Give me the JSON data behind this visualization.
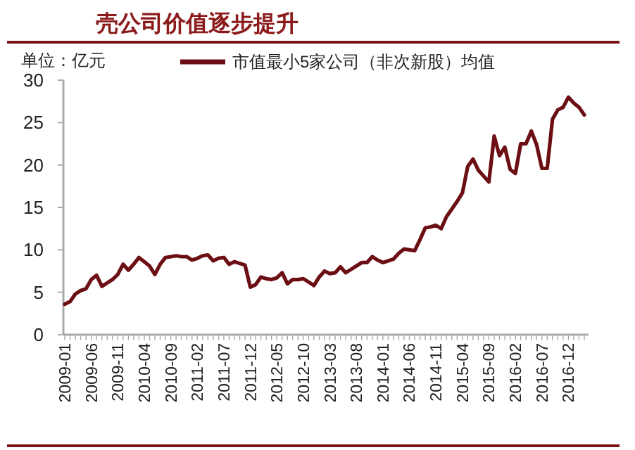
{
  "chart_data": {
    "type": "line",
    "title": "壳公司价值逐步提升",
    "ylabel": "单位：亿元",
    "categories": [
      "2009-01",
      null,
      null,
      null,
      null,
      "2009-06",
      null,
      null,
      null,
      null,
      "2009-11",
      null,
      null,
      null,
      null,
      "2010-04",
      null,
      null,
      null,
      null,
      "2010-09",
      null,
      null,
      null,
      null,
      "2011-02",
      null,
      null,
      null,
      null,
      "2011-07",
      null,
      null,
      null,
      null,
      "2011-12",
      null,
      null,
      null,
      null,
      "2012-05",
      null,
      null,
      null,
      null,
      "2012-10",
      null,
      null,
      null,
      null,
      "2013-03",
      null,
      null,
      null,
      null,
      "2013-08",
      null,
      null,
      null,
      null,
      "2014-01",
      null,
      null,
      null,
      null,
      "2014-06",
      null,
      null,
      null,
      null,
      "2014-11",
      null,
      null,
      null,
      null,
      "2015-04",
      null,
      null,
      null,
      null,
      "2015-09",
      null,
      null,
      null,
      null,
      "2016-02",
      null,
      null,
      null,
      null,
      "2016-07",
      null,
      null,
      null,
      null,
      "2016-12",
      null,
      null,
      null
    ],
    "series": [
      {
        "name": "市值最小5家公司（非次新股）均值",
        "color": "#6b0f14",
        "values": [
          3.6,
          3.9,
          4.8,
          5.2,
          5.4,
          6.5,
          7.0,
          5.7,
          6.1,
          6.5,
          7.1,
          8.3,
          7.6,
          8.3,
          9.1,
          8.6,
          8.1,
          7.1,
          8.3,
          9.1,
          9.2,
          9.3,
          9.2,
          9.2,
          8.8,
          9.0,
          9.3,
          9.4,
          8.7,
          9.0,
          9.1,
          8.3,
          8.6,
          8.4,
          8.2,
          5.6,
          5.9,
          6.8,
          6.6,
          6.5,
          6.7,
          7.3,
          6.0,
          6.5,
          6.5,
          6.6,
          6.2,
          5.8,
          6.8,
          7.5,
          7.2,
          7.3,
          8.0,
          7.3,
          7.7,
          8.1,
          8.5,
          8.5,
          9.2,
          8.8,
          8.5,
          8.7,
          8.9,
          9.6,
          10.1,
          10.0,
          9.9,
          11.2,
          12.6,
          12.7,
          12.9,
          12.5,
          13.9,
          14.8,
          15.7,
          16.7,
          19.8,
          20.7,
          19.4,
          18.7,
          18.0,
          23.4,
          21.1,
          22.1,
          19.5,
          19.0,
          22.5,
          22.5,
          24.0,
          22.4,
          19.6,
          19.6,
          25.4,
          26.5,
          26.8,
          28.0,
          27.3,
          26.8,
          25.9
        ]
      }
    ],
    "ylim": [
      0,
      30
    ],
    "yticks": [
      0,
      5,
      10,
      15,
      20,
      25,
      30
    ],
    "grid": false,
    "legend": "top",
    "marker": "none",
    "line_style": "solid"
  }
}
